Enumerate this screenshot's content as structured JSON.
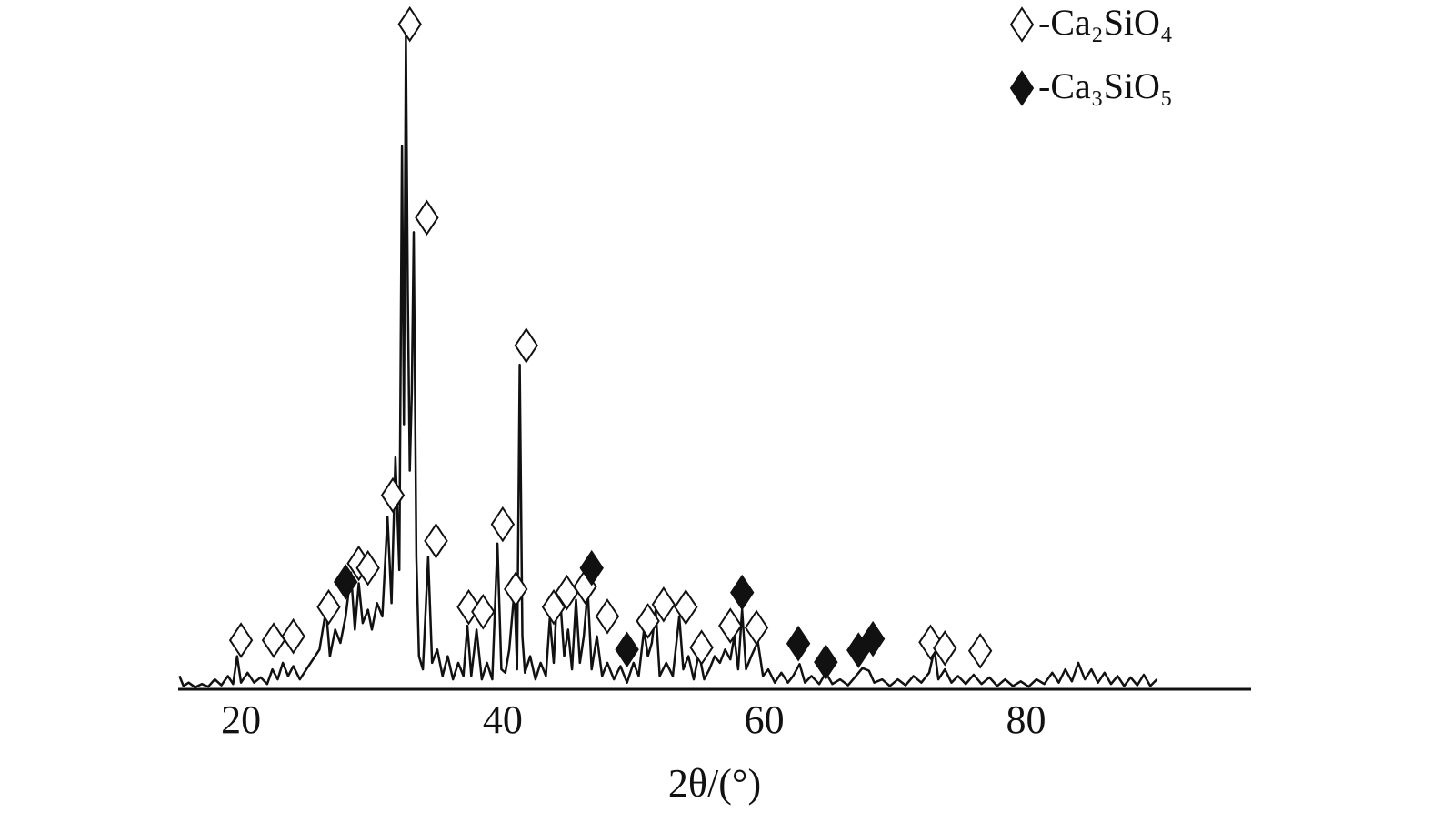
{
  "chart_data": {
    "type": "line",
    "xlabel": "2θ/(°)",
    "xlim": [
      15.2,
      97.2
    ],
    "ylim": [
      0,
      102
    ],
    "xticks": [
      20,
      40,
      60,
      80
    ],
    "color": "#111111",
    "x": [
      15.3,
      15.6,
      16.0,
      16.5,
      17.0,
      17.5,
      18.0,
      18.5,
      19.0,
      19.4,
      19.7,
      20.0,
      20.5,
      21.0,
      21.5,
      22.0,
      22.4,
      22.8,
      23.2,
      23.6,
      24.0,
      24.5,
      25.0,
      25.5,
      26.0,
      26.5,
      26.8,
      27.2,
      27.6,
      28.0,
      28.4,
      28.7,
      29.0,
      29.3,
      29.7,
      30.0,
      30.4,
      30.8,
      31.2,
      31.5,
      31.8,
      32.1,
      32.3,
      32.45,
      32.6,
      32.75,
      32.9,
      33.05,
      33.2,
      33.4,
      33.6,
      33.9,
      34.3,
      34.6,
      35.0,
      35.4,
      35.8,
      36.2,
      36.6,
      37.0,
      37.3,
      37.6,
      38.0,
      38.4,
      38.8,
      39.2,
      39.6,
      39.9,
      40.2,
      40.5,
      40.9,
      41.1,
      41.3,
      41.5,
      41.7,
      42.1,
      42.5,
      42.9,
      43.3,
      43.6,
      43.9,
      44.1,
      44.4,
      44.7,
      45.0,
      45.3,
      45.6,
      45.9,
      46.2,
      46.5,
      46.8,
      47.2,
      47.6,
      48.0,
      48.5,
      49.0,
      49.5,
      50.0,
      50.4,
      50.8,
      51.1,
      51.4,
      51.7,
      52.0,
      52.5,
      53.0,
      53.5,
      53.8,
      54.2,
      54.6,
      55.0,
      55.4,
      55.8,
      56.2,
      56.6,
      57.0,
      57.4,
      57.7,
      58.0,
      58.3,
      58.6,
      59.0,
      59.5,
      59.9,
      60.3,
      60.8,
      61.3,
      61.8,
      62.2,
      62.7,
      63.1,
      63.6,
      64.2,
      64.7,
      65.2,
      65.8,
      66.4,
      67.0,
      67.5,
      68.0,
      68.4,
      69.0,
      69.6,
      70.2,
      70.8,
      71.4,
      72.0,
      72.6,
      73.0,
      73.3,
      73.8,
      74.3,
      74.8,
      75.4,
      76.0,
      76.6,
      77.2,
      77.8,
      78.4,
      79.0,
      79.6,
      80.2,
      80.8,
      81.4,
      82.0,
      82.5,
      83.0,
      83.5,
      84.0,
      84.5,
      85.0,
      85.5,
      86.0,
      86.5,
      87.0,
      87.5,
      88.0,
      88.5,
      89.0,
      89.5,
      90.0
    ],
    "values": [
      2,
      0.5,
      1,
      0.3,
      0.8,
      0.4,
      1.5,
      0.6,
      2,
      0.8,
      5,
      1,
      2.5,
      1,
      1.8,
      0.8,
      3,
      1.5,
      4,
      2,
      3.5,
      1.5,
      3,
      4.5,
      6,
      12,
      5,
      9,
      7,
      11,
      17.6,
      9,
      16,
      10,
      12,
      9,
      13,
      11,
      26,
      13,
      35,
      18,
      82,
      40,
      98.6,
      60,
      33,
      45,
      69,
      20,
      5,
      3,
      20,
      4,
      6,
      2,
      5,
      1.5,
      4,
      2,
      9.6,
      2,
      9,
      1.5,
      4,
      1.5,
      22,
      3,
      2.5,
      6,
      15,
      3,
      49,
      8,
      2.5,
      5,
      1.5,
      4,
      2,
      10.7,
      4,
      12,
      13.5,
      5,
      9,
      3,
      13.5,
      4,
      8,
      15,
      3,
      8,
      2,
      4,
      1.5,
      3.5,
      1,
      4,
      2,
      9,
      5,
      7,
      12,
      2,
      4,
      2,
      11,
      3,
      5,
      1.5,
      5.5,
      1.5,
      3,
      5,
      4,
      6,
      4.5,
      8,
      3,
      12,
      3,
      5,
      7.2,
      2,
      3,
      1,
      2.5,
      1,
      2,
      3.8,
      1,
      2,
      0.8,
      2.5,
      0.8,
      1.5,
      0.6,
      2,
      3.2,
      2.8,
      1,
      1.5,
      0.5,
      1.5,
      0.6,
      2,
      1,
      2.5,
      6,
      1.5,
      3,
      1,
      2,
      0.8,
      2.2,
      0.8,
      1.8,
      0.5,
      1.5,
      0.5,
      1.2,
      0.4,
      1.5,
      0.8,
      2.5,
      1,
      3,
      1.2,
      4,
      1.5,
      3,
      1,
      2.5,
      0.8,
      2,
      0.5,
      1.8,
      0.6,
      2.2,
      0.5,
      1.5
    ],
    "markers": [
      {
        "name": "-Ca₂SiO₄",
        "style": "open",
        "color": "#111111",
        "x": [
          20.0,
          22.5,
          24.0,
          26.7,
          29.0,
          29.7,
          31.6,
          32.9,
          34.2,
          34.9,
          37.4,
          38.5,
          40.0,
          41.0,
          41.8,
          43.9,
          44.9,
          46.3,
          48.0,
          51.1,
          52.3,
          54.0,
          55.2,
          57.4,
          59.4,
          72.7,
          73.8,
          76.5
        ],
        "y": [
          7.4,
          7.4,
          8.0,
          12.4,
          19.0,
          18.3,
          29.3,
          100.4,
          71.2,
          22.4,
          12.4,
          11.7,
          24.9,
          15.1,
          51.9,
          12.4,
          14.6,
          15.5,
          11.0,
          10.3,
          12.8,
          12.4,
          6.3,
          9.6,
          9.3,
          7.1,
          6.2,
          5.8
        ]
      },
      {
        "name": "-Ca₃SiO₅",
        "style": "filled",
        "color": "#111111",
        "x": [
          28.0,
          46.8,
          49.5,
          58.3,
          62.6,
          64.7,
          67.2,
          68.3
        ],
        "y": [
          16.2,
          18.3,
          6.0,
          14.6,
          6.9,
          4.1,
          5.9,
          7.6
        ]
      }
    ]
  }
}
